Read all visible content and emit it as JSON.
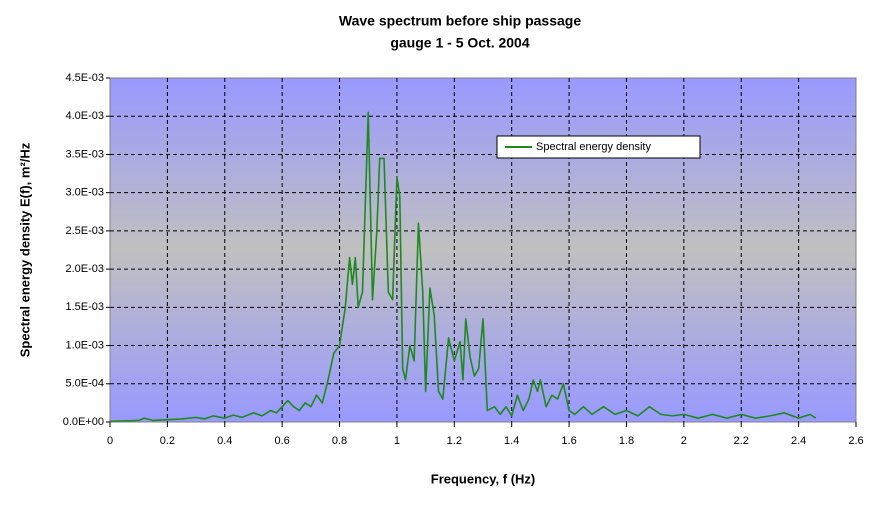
{
  "chart_data": {
    "type": "line",
    "title": "Wave spectrum before ship passage",
    "subtitle": "gauge 1 - 5 Oct. 2004",
    "xlabel": "Frequency, f (Hz)",
    "ylabel": "Spectral energy density E(f), m²/Hz",
    "grid": true,
    "legend": "upper right",
    "xlim": [
      0,
      2.6
    ],
    "xticks": [
      0,
      0.2,
      0.4,
      0.6,
      0.8,
      1,
      1.2,
      1.4,
      1.6,
      1.8,
      2,
      2.2,
      2.4,
      2.6
    ],
    "ylim": [
      0,
      0.0045
    ],
    "yticks": [
      {
        "value": 0,
        "label": "0.0E+00"
      },
      {
        "value": 0.0005,
        "label": "5.0E-04"
      },
      {
        "value": 0.001,
        "label": "1.0E-03"
      },
      {
        "value": 0.0015,
        "label": "1.5E-03"
      },
      {
        "value": 0.002,
        "label": "2.0E-03"
      },
      {
        "value": 0.0025,
        "label": "2.5E-03"
      },
      {
        "value": 0.003,
        "label": "3.0E-03"
      },
      {
        "value": 0.0035,
        "label": "3.5E-03"
      },
      {
        "value": 0.004,
        "label": "4.0E-03"
      },
      {
        "value": 0.0045,
        "label": "4.5E-03"
      }
    ],
    "series": [
      {
        "name": "Spectral energy density",
        "color": "#1e8a1e",
        "x": [
          0,
          0.1,
          0.12,
          0.15,
          0.2,
          0.25,
          0.3,
          0.33,
          0.36,
          0.4,
          0.43,
          0.46,
          0.5,
          0.53,
          0.56,
          0.58,
          0.6,
          0.62,
          0.64,
          0.66,
          0.68,
          0.7,
          0.72,
          0.74,
          0.76,
          0.78,
          0.8,
          0.82,
          0.835,
          0.845,
          0.855,
          0.865,
          0.88,
          0.9,
          0.915,
          0.93,
          0.94,
          0.955,
          0.97,
          0.985,
          1.0,
          1.01,
          1.02,
          1.03,
          1.045,
          1.06,
          1.075,
          1.09,
          1.1,
          1.115,
          1.13,
          1.145,
          1.16,
          1.18,
          1.2,
          1.22,
          1.23,
          1.24,
          1.255,
          1.27,
          1.285,
          1.3,
          1.315,
          1.34,
          1.36,
          1.38,
          1.4,
          1.42,
          1.44,
          1.46,
          1.475,
          1.49,
          1.5,
          1.52,
          1.54,
          1.56,
          1.58,
          1.6,
          1.62,
          1.65,
          1.68,
          1.72,
          1.76,
          1.8,
          1.84,
          1.88,
          1.92,
          1.96,
          2.0,
          2.05,
          2.1,
          2.15,
          2.2,
          2.25,
          2.3,
          2.35,
          2.4,
          2.44,
          2.46
        ],
        "values": [
          1e-05,
          2e-05,
          5e-05,
          2e-05,
          3e-05,
          4e-05,
          6e-05,
          4e-05,
          8e-05,
          5e-05,
          9e-05,
          6e-05,
          0.00012,
          8e-05,
          0.00015,
          0.00012,
          0.0002,
          0.00028,
          0.0002,
          0.00015,
          0.00025,
          0.0002,
          0.00035,
          0.00025,
          0.00055,
          0.0009,
          0.001,
          0.0015,
          0.00215,
          0.0018,
          0.00215,
          0.0015,
          0.0017,
          0.00405,
          0.0016,
          0.0025,
          0.00345,
          0.00345,
          0.0017,
          0.0016,
          0.0032,
          0.00295,
          0.0007,
          0.00055,
          0.001,
          0.0008,
          0.0026,
          0.0017,
          0.0004,
          0.00175,
          0.0014,
          0.0004,
          0.0003,
          0.0011,
          0.0008,
          0.00105,
          0.00055,
          0.00135,
          0.00085,
          0.0006,
          0.0007,
          0.00135,
          0.00015,
          0.0002,
          0.0001,
          0.0002,
          8e-05,
          0.00035,
          0.00015,
          0.0003,
          0.00055,
          0.0004,
          0.00055,
          0.0002,
          0.00035,
          0.0003,
          0.0005,
          0.00015,
          0.0001,
          0.0002,
          0.0001,
          0.0002,
          0.0001,
          0.00015,
          8e-05,
          0.0002,
          0.0001,
          8e-05,
          0.0001,
          5e-05,
          0.0001,
          5e-05,
          0.0001,
          5e-05,
          8e-05,
          0.00012,
          5e-05,
          0.0001,
          5e-05
        ]
      }
    ]
  }
}
